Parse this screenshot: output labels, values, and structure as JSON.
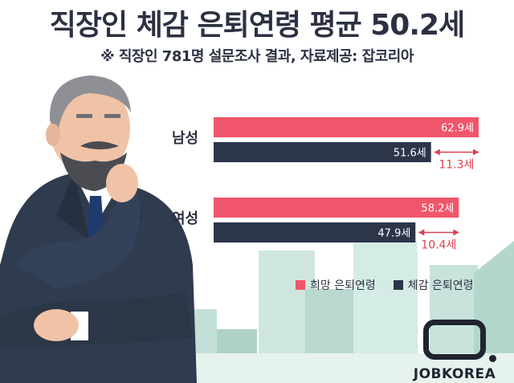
{
  "header": {
    "title": "직장인 체감 은퇴연령 평균 50.2세",
    "subtitle": "※ 직장인 781명 설문조사 결과,  자료제공: 잡코리아"
  },
  "chart_data": {
    "type": "bar",
    "orientation": "horizontal",
    "categories": [
      "남성",
      "여성"
    ],
    "series": [
      {
        "name": "희망 은퇴연령",
        "values": [
          62.9,
          58.2
        ],
        "labels": [
          "62.9세",
          "58.2세"
        ],
        "color": "#f0566b"
      },
      {
        "name": "체감 은퇴연령",
        "values": [
          51.6,
          47.9
        ],
        "labels": [
          "51.6세",
          "47.9세"
        ],
        "color": "#2d3549"
      }
    ],
    "differences": [
      {
        "category": "남성",
        "value": 11.3,
        "label": "11.3세"
      },
      {
        "category": "여성",
        "value": 10.4,
        "label": "10.4세"
      }
    ],
    "legend_position": "bottom-right",
    "grid": false
  },
  "brand": {
    "logo_text": "JOBKOREA"
  },
  "colors": {
    "hope": "#f0566b",
    "felt": "#2d3549",
    "title": "#2b3142",
    "diff": "#d9404f"
  }
}
